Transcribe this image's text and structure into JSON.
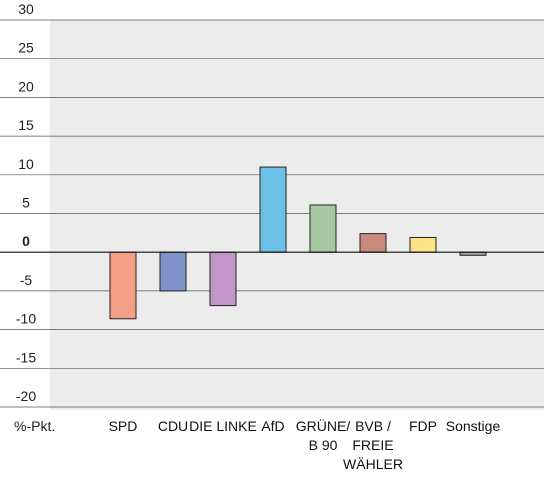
{
  "chart_data": {
    "type": "bar",
    "unit_label": "%-Pkt.",
    "categories": [
      [
        "SPD"
      ],
      [
        "CDU"
      ],
      [
        "DIE LINKE"
      ],
      [
        "AfD"
      ],
      [
        "GRÜNE/",
        "B 90"
      ],
      [
        "BVB /",
        "FREIE",
        "WÄHLER"
      ],
      [
        "FDP"
      ],
      [
        "Sonstige"
      ]
    ],
    "values": [
      -8.6,
      -5.0,
      -6.9,
      11.0,
      6.1,
      2.4,
      1.9,
      -0.4
    ],
    "colors": [
      "#f4a086",
      "#7f93c8",
      "#c296c9",
      "#6cbfe6",
      "#a8c7a3",
      "#c98a7d",
      "#fbe386",
      "#a3a3a3"
    ],
    "ylim": [
      -20,
      30
    ],
    "yticks": [
      30,
      25,
      20,
      15,
      10,
      5,
      0,
      -5,
      -10,
      -15,
      -20
    ],
    "grid": true,
    "title": "",
    "xlabel": "",
    "ylabel": ""
  }
}
